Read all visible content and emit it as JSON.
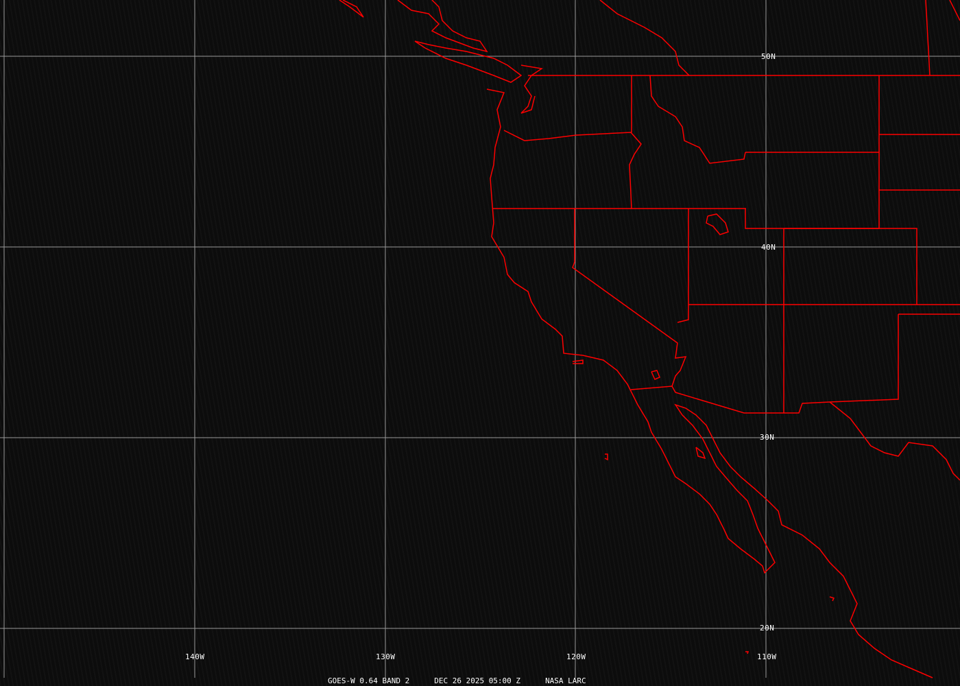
{
  "caption": {
    "satellite": "GOES-W 0.64 BAND 2",
    "datetime": "DEC 26 2025 05:00 Z",
    "source": "NASA LARC"
  },
  "latitude_labels": [
    "50N",
    "40N",
    "30N",
    "20N"
  ],
  "longitude_labels": [
    "140W",
    "130W",
    "120W",
    "110W"
  ],
  "colors": {
    "boundaries": "#ff0000",
    "grid": "#9a9a9a",
    "background": "#0c0c0c",
    "text": "#ffffff"
  }
}
